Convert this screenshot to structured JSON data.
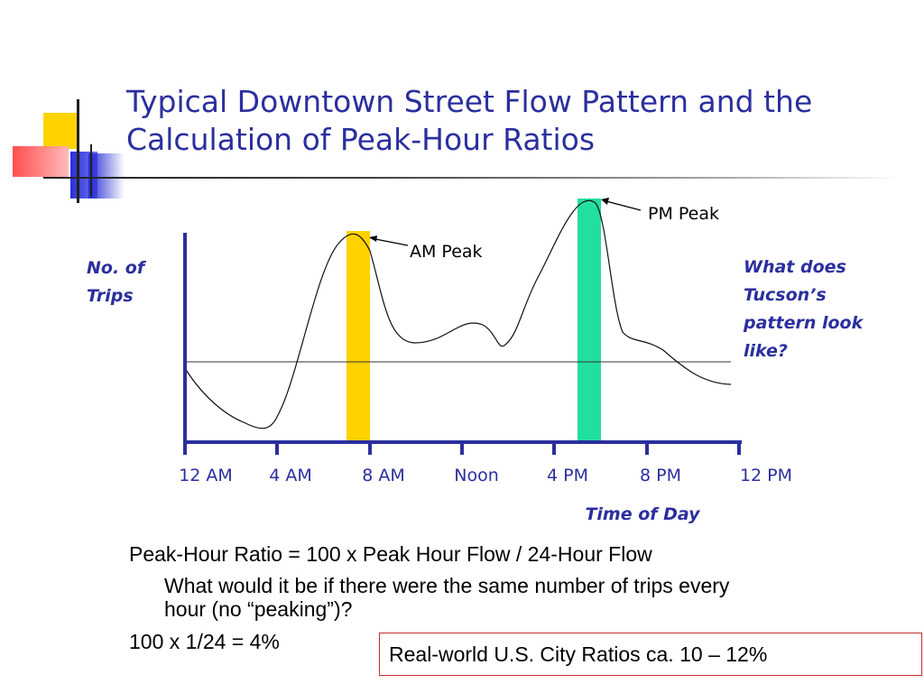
{
  "slide": {
    "title_line1": "Typical Downtown Street Flow Pattern and the",
    "title_line2": "Calculation of Peak-Hour Ratios",
    "accent_colors": {
      "title": "#2b2f9e",
      "yellow": "#ffd200",
      "blue": "#2a2fd6",
      "red": "#ff3b3b",
      "green": "#22dfa0",
      "box_border": "#cc2a2a"
    }
  },
  "diagram": {
    "y_axis_title_line1": "No. of",
    "y_axis_title_line2": "Trips",
    "x_axis_title": "Time of Day",
    "x_ticks": [
      "12 AM",
      "4 AM",
      "8 AM",
      "Noon",
      "4 PM",
      "8 PM",
      "12 PM"
    ],
    "am_peak_label": "AM Peak",
    "pm_peak_label": "PM Peak",
    "question_lines": [
      "What does",
      "Tucson’s",
      "pattern look",
      "like?"
    ]
  },
  "text": {
    "formula": "Peak-Hour Ratio = 100 x Peak Hour Flow / 24-Hour Flow",
    "question_line1": "What would it be if there were the same number of trips every",
    "question_line2": "hour (no “peaking”)?",
    "calc": "100 x 1/24 = 4%",
    "real_world": "Real-world U.S. City Ratios ca. 10 – 12%"
  }
}
